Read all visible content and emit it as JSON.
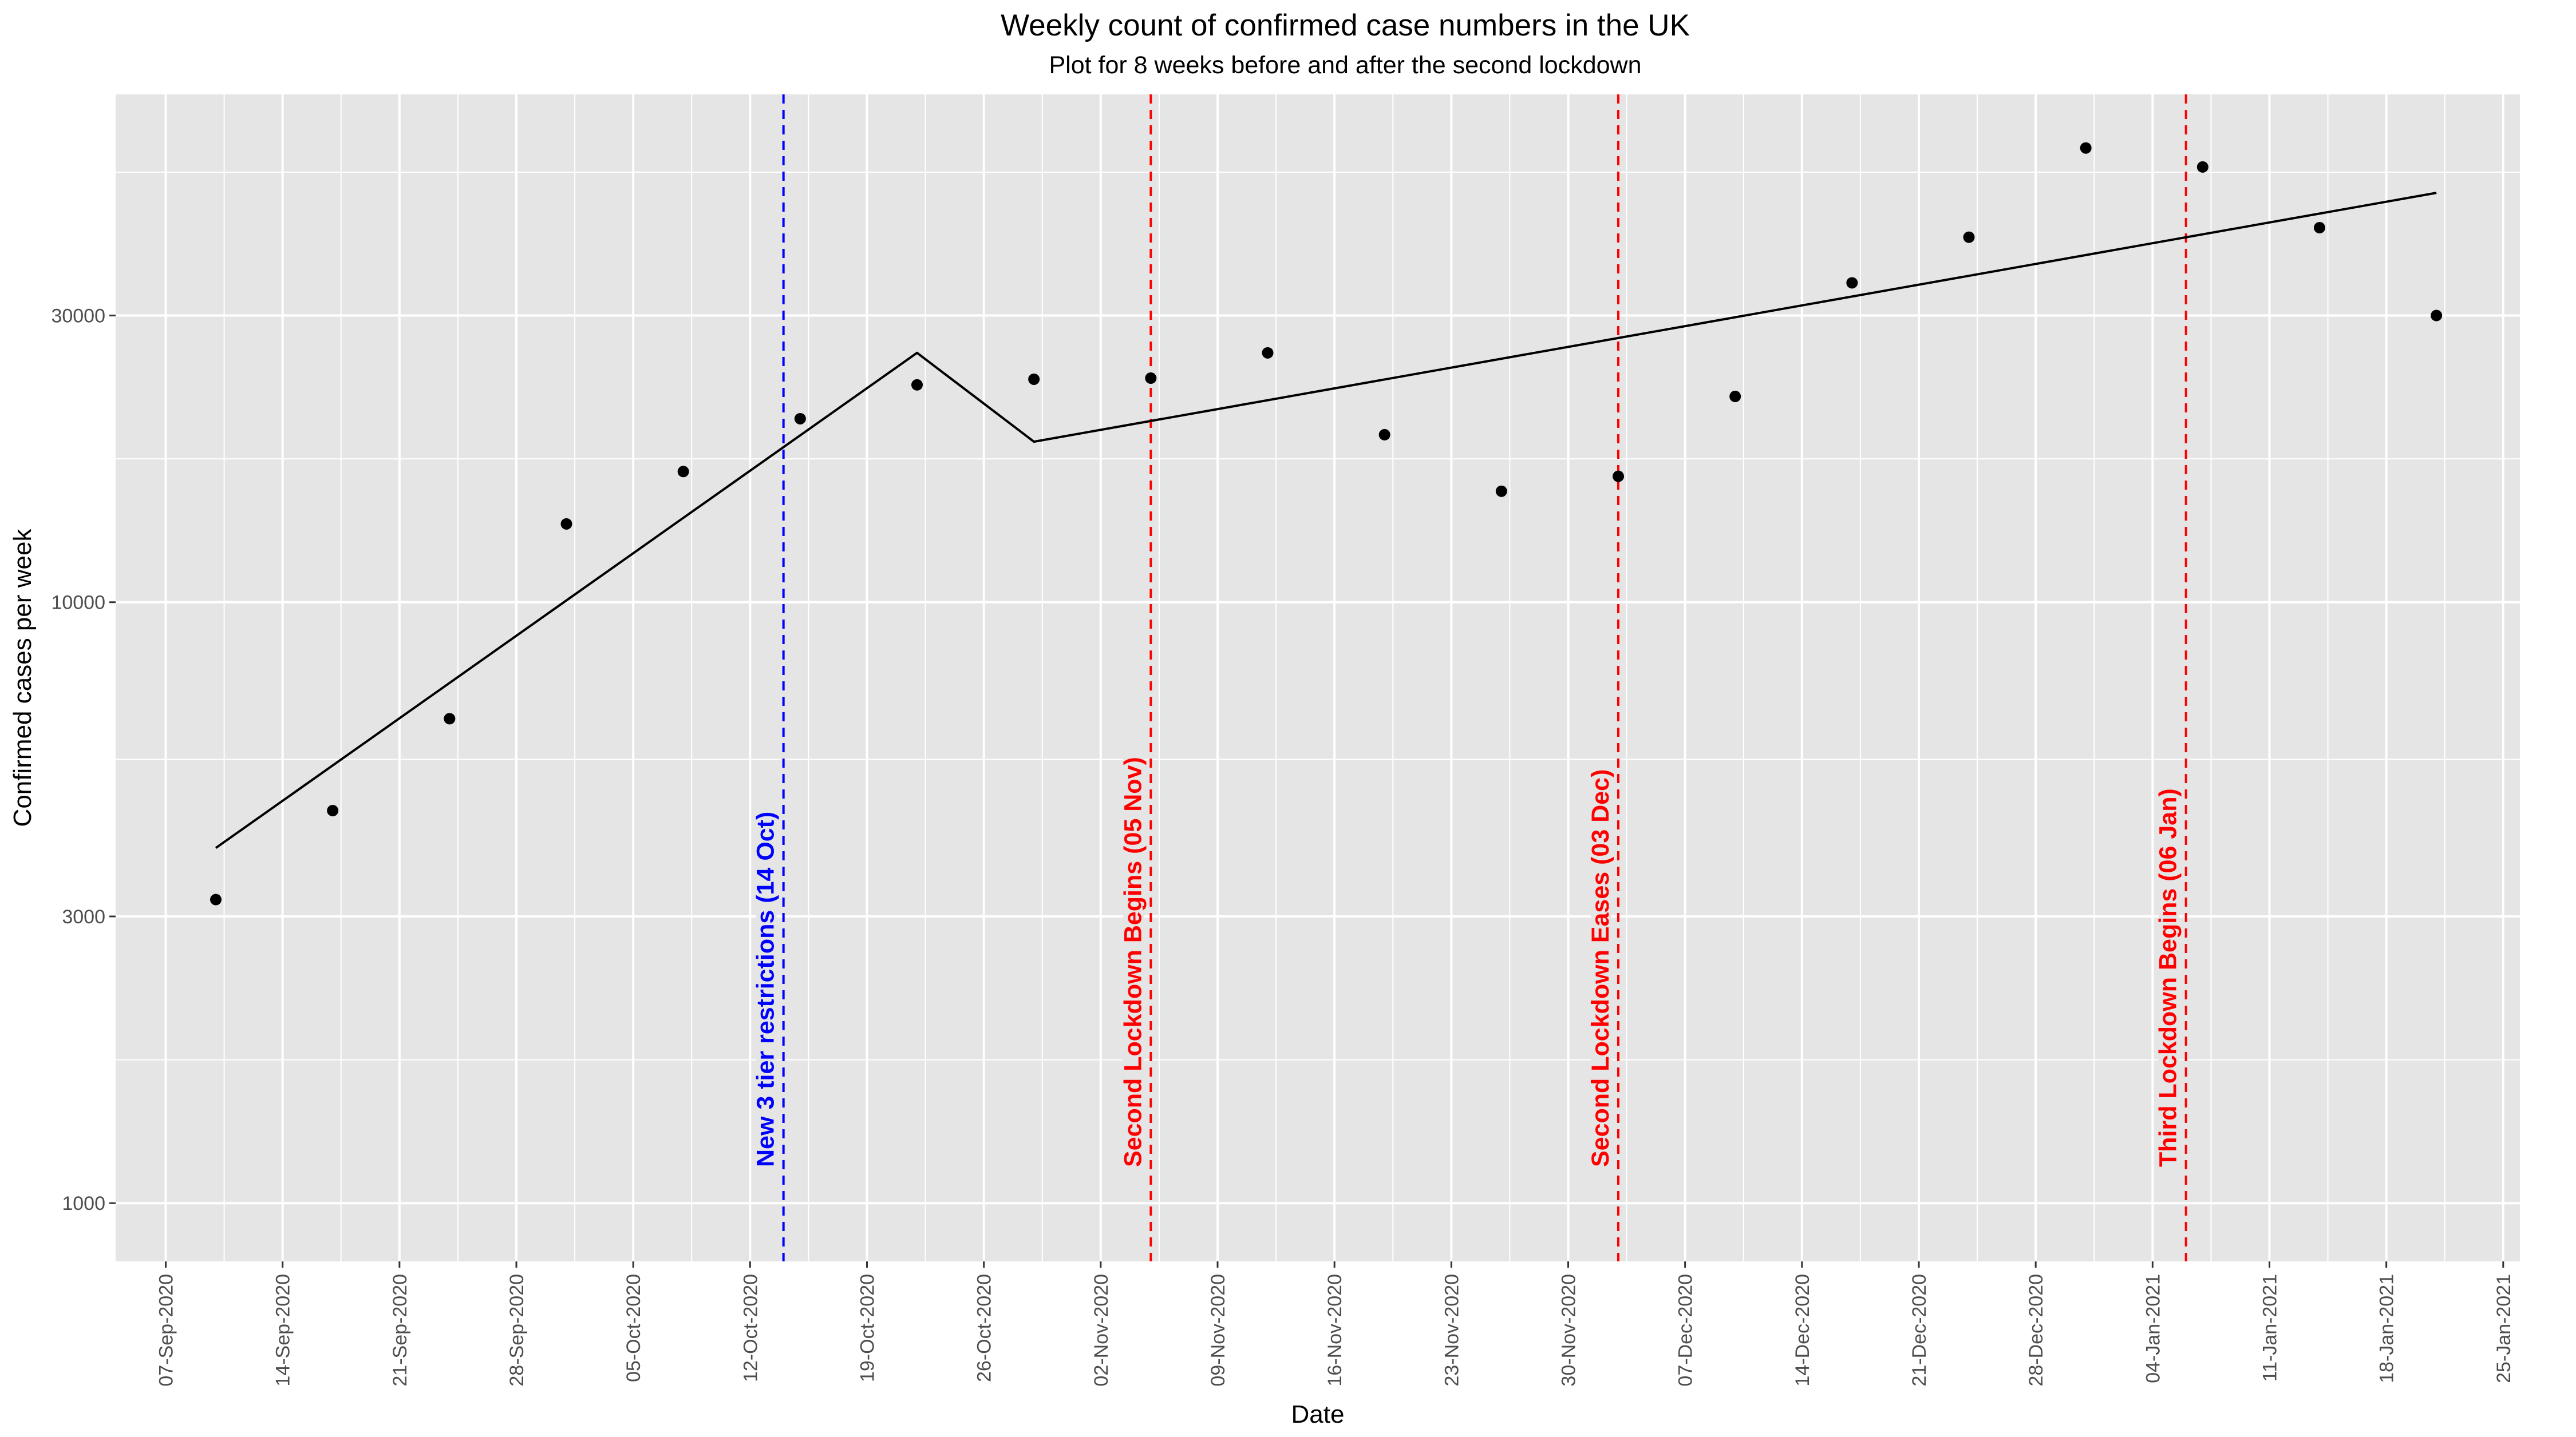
{
  "chart_data": {
    "type": "scatter",
    "title": "Weekly count of confirmed case numbers in the UK",
    "subtitle": "Plot for 8 weeks before and after the second lockdown",
    "xlabel": "Date",
    "ylabel": "Confirmed cases per week",
    "y_scale": "log10",
    "ylim": [
      800,
      70000
    ],
    "xlim": [
      "2020-09-04",
      "2021-01-26"
    ],
    "grid": true,
    "legend": "none",
    "colors": {
      "panel": "#e5e5e5",
      "grid": "#ffffff",
      "points": "#000000",
      "fit": "#000000",
      "tier": "#0000ff",
      "lockdown": "#ff0000"
    },
    "x_ticks": [
      "07-Sep-2020",
      "14-Sep-2020",
      "21-Sep-2020",
      "28-Sep-2020",
      "05-Oct-2020",
      "12-Oct-2020",
      "19-Oct-2020",
      "26-Oct-2020",
      "02-Nov-2020",
      "09-Nov-2020",
      "16-Nov-2020",
      "23-Nov-2020",
      "30-Nov-2020",
      "07-Dec-2020",
      "14-Dec-2020",
      "21-Dec-2020",
      "28-Dec-2020",
      "04-Jan-2021",
      "11-Jan-2021",
      "18-Jan-2021",
      "25-Jan-2021"
    ],
    "y_ticks": [
      1000,
      3000,
      10000,
      30000
    ],
    "y_tick_labels": [
      "1000",
      "3000",
      "10000",
      "30000"
    ],
    "points": [
      {
        "x": "2020-09-10",
        "y": 3200
      },
      {
        "x": "2020-09-17",
        "y": 4500
      },
      {
        "x": "2020-09-24",
        "y": 6400
      },
      {
        "x": "2020-10-01",
        "y": 13500
      },
      {
        "x": "2020-10-08",
        "y": 16500
      },
      {
        "x": "2020-10-15",
        "y": 20200
      },
      {
        "x": "2020-10-22",
        "y": 23000
      },
      {
        "x": "2020-10-29",
        "y": 23500
      },
      {
        "x": "2020-11-05",
        "y": 23600
      },
      {
        "x": "2020-11-12",
        "y": 26000
      },
      {
        "x": "2020-11-19",
        "y": 19000
      },
      {
        "x": "2020-11-26",
        "y": 15300
      },
      {
        "x": "2020-12-03",
        "y": 16200
      },
      {
        "x": "2020-12-10",
        "y": 22000
      },
      {
        "x": "2020-12-17",
        "y": 34000
      },
      {
        "x": "2020-12-24",
        "y": 40500
      },
      {
        "x": "2020-12-31",
        "y": 57000
      },
      {
        "x": "2021-01-07",
        "y": 53000
      },
      {
        "x": "2021-01-14",
        "y": 42000
      },
      {
        "x": "2021-01-21",
        "y": 30000
      }
    ],
    "fit_line": [
      {
        "x": "2020-09-10",
        "y": 3900
      },
      {
        "x": "2020-10-22",
        "y": 26000
      },
      {
        "x": "2020-10-29",
        "y": 18500
      },
      {
        "x": "2021-01-21",
        "y": 48000
      }
    ],
    "vlines": [
      {
        "x": "2020-10-14",
        "label": "New 3 tier restrictions (14 Oct)",
        "color": "#0000ff"
      },
      {
        "x": "2020-11-05",
        "label": "Second Lockdown Begins (05 Nov)",
        "color": "#ff0000"
      },
      {
        "x": "2020-12-03",
        "label": "Second Lockdown Eases (03 Dec)",
        "color": "#ff0000"
      },
      {
        "x": "2021-01-06",
        "label": "Third Lockdown Begins (06 Jan)",
        "color": "#ff0000"
      }
    ]
  }
}
